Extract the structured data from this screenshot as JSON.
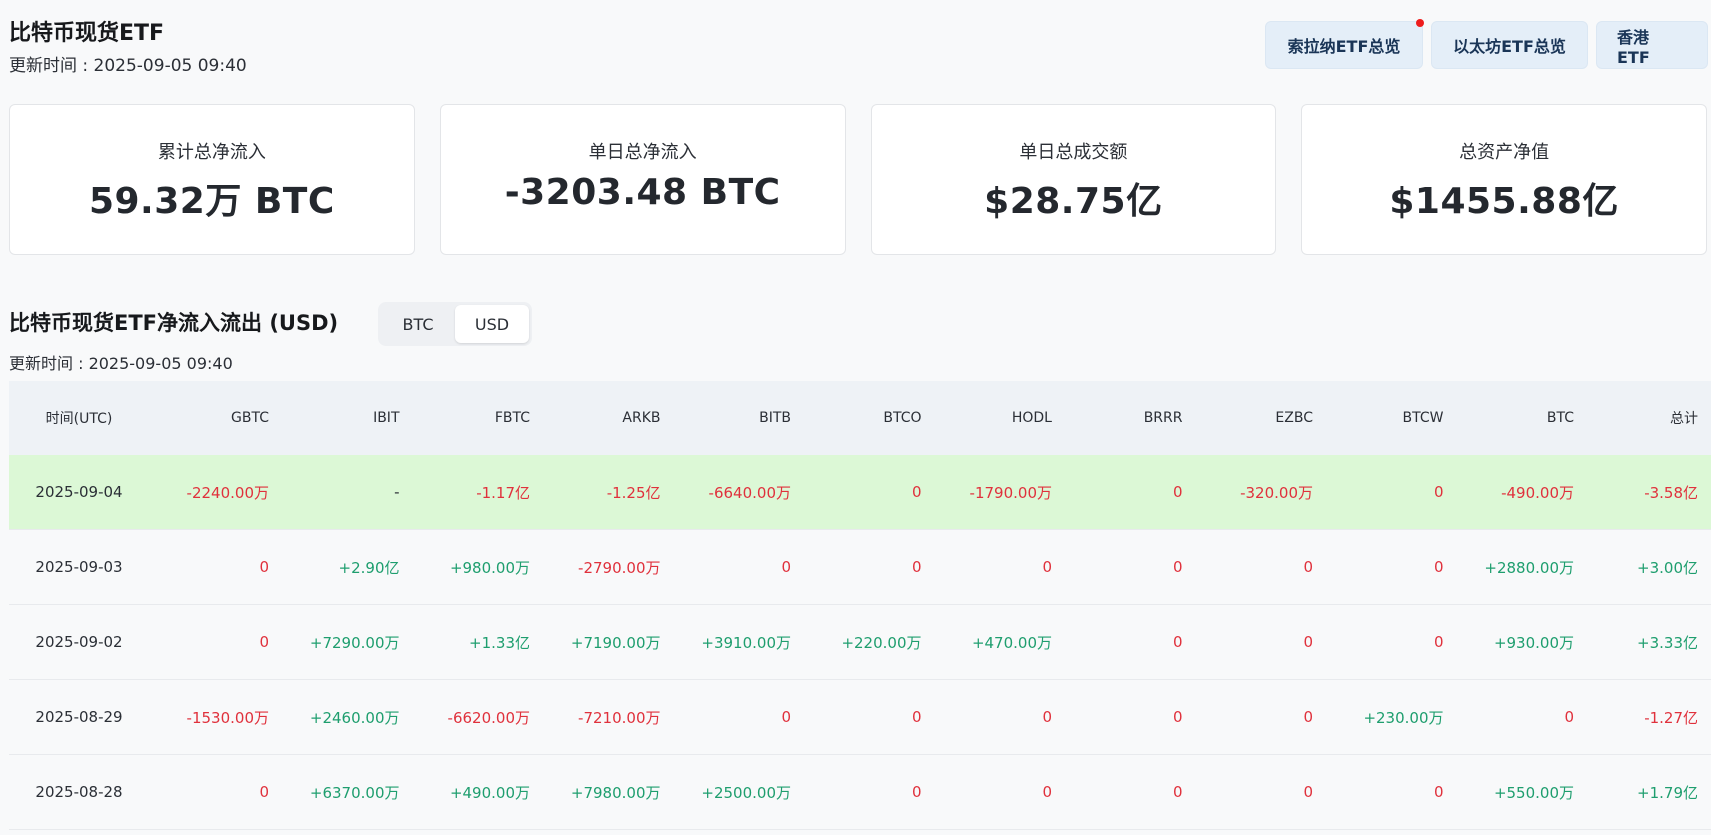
{
  "header": {
    "title": "比特币现货ETF",
    "updated": "更新时间 : 2025-09-05 09:40",
    "buttons": [
      {
        "label": "索拉纳ETF总览",
        "has_dot": true
      },
      {
        "label": "以太坊ETF总览",
        "has_dot": false
      },
      {
        "label": "香港 ETF",
        "has_dot": false
      }
    ]
  },
  "stats": [
    {
      "label": "累计总净流入",
      "value": "59.32万 BTC"
    },
    {
      "label": "单日总净流入",
      "value": "-3203.48 BTC"
    },
    {
      "label": "单日总成交额",
      "value": "$28.75亿"
    },
    {
      "label": "总资产净值",
      "value": "$1455.88亿"
    }
  ],
  "section": {
    "title": "比特币现货ETF净流入流出 (USD)",
    "updated": "更新时间 : 2025-09-05 09:40",
    "toggle": {
      "options": [
        "BTC",
        "USD"
      ],
      "selected": "USD"
    }
  },
  "table": {
    "columns": [
      "时间(UTC)",
      "GBTC",
      "IBIT",
      "FBTC",
      "ARKB",
      "BITB",
      "BTCO",
      "HODL",
      "BRRR",
      "EZBC",
      "BTCW",
      "BTC",
      "总计"
    ],
    "rows": [
      {
        "highlight": true,
        "cells": [
          "2025-09-04",
          "-2240.00万",
          "-",
          "-1.17亿",
          "-1.25亿",
          "-6640.00万",
          "0",
          "-1790.00万",
          "0",
          "-320.00万",
          "0",
          "-490.00万",
          "-3.58亿"
        ]
      },
      {
        "highlight": false,
        "cells": [
          "2025-09-03",
          "0",
          "+2.90亿",
          "+980.00万",
          "-2790.00万",
          "0",
          "0",
          "0",
          "0",
          "0",
          "0",
          "+2880.00万",
          "+3.00亿"
        ]
      },
      {
        "highlight": false,
        "cells": [
          "2025-09-02",
          "0",
          "+7290.00万",
          "+1.33亿",
          "+7190.00万",
          "+3910.00万",
          "+220.00万",
          "+470.00万",
          "0",
          "0",
          "0",
          "+930.00万",
          "+3.33亿"
        ]
      },
      {
        "highlight": false,
        "cells": [
          "2025-08-29",
          "-1530.00万",
          "+2460.00万",
          "-6620.00万",
          "-7210.00万",
          "0",
          "0",
          "0",
          "0",
          "0",
          "+230.00万",
          "0",
          "-1.27亿"
        ]
      },
      {
        "highlight": false,
        "cells": [
          "2025-08-28",
          "0",
          "+6370.00万",
          "+490.00万",
          "+7980.00万",
          "+2500.00万",
          "0",
          "0",
          "0",
          "0",
          "0",
          "+550.00万",
          "+1.79亿"
        ]
      }
    ]
  },
  "colors": {
    "positive": "#1e9e6e",
    "negative": "#e0313c",
    "highlight_row": "#dcf8d6"
  }
}
